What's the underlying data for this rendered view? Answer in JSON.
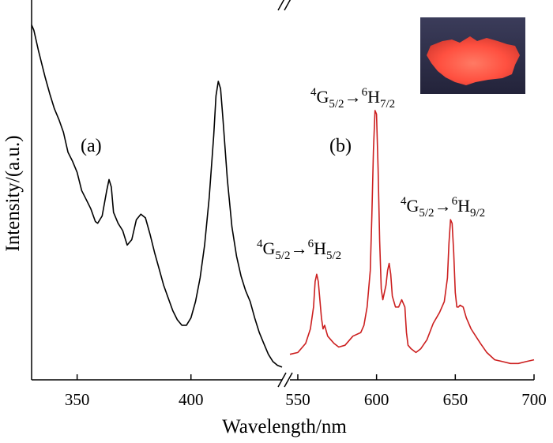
{
  "chart_data": {
    "type": "line",
    "xlabel": "Wavelength/nm",
    "ylabel": "Intensity/(a.u.)",
    "axis_break": {
      "from": 440,
      "to": 545
    },
    "x_segments": [
      {
        "xlim": [
          330,
          440
        ],
        "ticks": [
          350,
          400
        ]
      },
      {
        "xlim": [
          545,
          700
        ],
        "ticks": [
          550,
          600,
          650,
          700
        ]
      }
    ],
    "ylim": [
      0,
      1.0
    ],
    "grid": false,
    "series": [
      {
        "panel": "(a)",
        "color": "#000000",
        "x": [
          330,
          331,
          333,
          336,
          338,
          340,
          342,
          344,
          346,
          348,
          350,
          352,
          354,
          356,
          358,
          359,
          361,
          363,
          364,
          365,
          366,
          368,
          370,
          372,
          374,
          376,
          378,
          380,
          382,
          384,
          386,
          388,
          390,
          392,
          394,
          396,
          398,
          400,
          402,
          404,
          406,
          408,
          410,
          411,
          412,
          413,
          414,
          416,
          418,
          420,
          422,
          424,
          426,
          428,
          430,
          432,
          434,
          436,
          438,
          440
        ],
        "y": [
          0.975,
          0.96,
          0.905,
          0.83,
          0.785,
          0.745,
          0.715,
          0.68,
          0.625,
          0.6,
          0.57,
          0.52,
          0.495,
          0.47,
          0.435,
          0.43,
          0.45,
          0.52,
          0.55,
          0.53,
          0.46,
          0.43,
          0.41,
          0.37,
          0.385,
          0.44,
          0.455,
          0.445,
          0.4,
          0.35,
          0.305,
          0.26,
          0.225,
          0.19,
          0.165,
          0.15,
          0.15,
          0.17,
          0.215,
          0.28,
          0.37,
          0.5,
          0.67,
          0.78,
          0.82,
          0.8,
          0.72,
          0.55,
          0.42,
          0.34,
          0.285,
          0.245,
          0.215,
          0.17,
          0.13,
          0.1,
          0.07,
          0.05,
          0.04,
          0.035
        ]
      },
      {
        "panel": "(b)",
        "color": "#cc1f1f",
        "x": [
          545,
          550,
          555,
          558,
          560,
          561,
          562,
          563,
          564,
          565,
          566,
          567,
          569,
          571,
          573,
          576,
          580,
          585,
          590,
          592,
          594,
          596,
          597,
          598,
          599,
          600,
          601,
          602,
          603,
          604,
          606,
          607,
          608,
          609,
          610,
          612,
          614,
          616,
          618,
          619,
          620,
          622,
          625,
          628,
          632,
          636,
          640,
          643,
          645,
          646,
          647,
          648,
          649,
          650,
          651,
          652,
          653,
          655,
          657,
          660,
          663,
          666,
          670,
          675,
          680,
          685,
          690,
          695,
          700
        ],
        "y": [
          0.07,
          0.075,
          0.1,
          0.14,
          0.2,
          0.27,
          0.29,
          0.27,
          0.22,
          0.17,
          0.14,
          0.15,
          0.12,
          0.11,
          0.1,
          0.09,
          0.095,
          0.12,
          0.13,
          0.15,
          0.2,
          0.3,
          0.45,
          0.63,
          0.74,
          0.73,
          0.58,
          0.38,
          0.25,
          0.22,
          0.26,
          0.3,
          0.32,
          0.29,
          0.23,
          0.2,
          0.2,
          0.22,
          0.2,
          0.13,
          0.095,
          0.085,
          0.075,
          0.085,
          0.11,
          0.155,
          0.185,
          0.215,
          0.28,
          0.375,
          0.44,
          0.43,
          0.35,
          0.24,
          0.2,
          0.2,
          0.205,
          0.2,
          0.17,
          0.14,
          0.12,
          0.1,
          0.075,
          0.055,
          0.05,
          0.045,
          0.045,
          0.05,
          0.055
        ]
      }
    ],
    "panel_labels": [
      "(a)",
      "(b)"
    ],
    "annotations": [
      {
        "level": "4",
        "g": "G",
        "gsub": "5/2",
        "arrow": "→",
        "level2": "6",
        "h": "H",
        "hsub": "5/2"
      },
      {
        "level": "4",
        "g": "G",
        "gsub": "5/2",
        "arrow": "→",
        "level2": "6",
        "h": "H",
        "hsub": "7/2"
      },
      {
        "level": "4",
        "g": "G",
        "gsub": "5/2",
        "arrow": "→",
        "level2": "6",
        "h": "H",
        "hsub": "9/2"
      }
    ],
    "inset": {
      "content": "photo of red-luminescent film",
      "glow_color": "#ff5a46"
    }
  }
}
